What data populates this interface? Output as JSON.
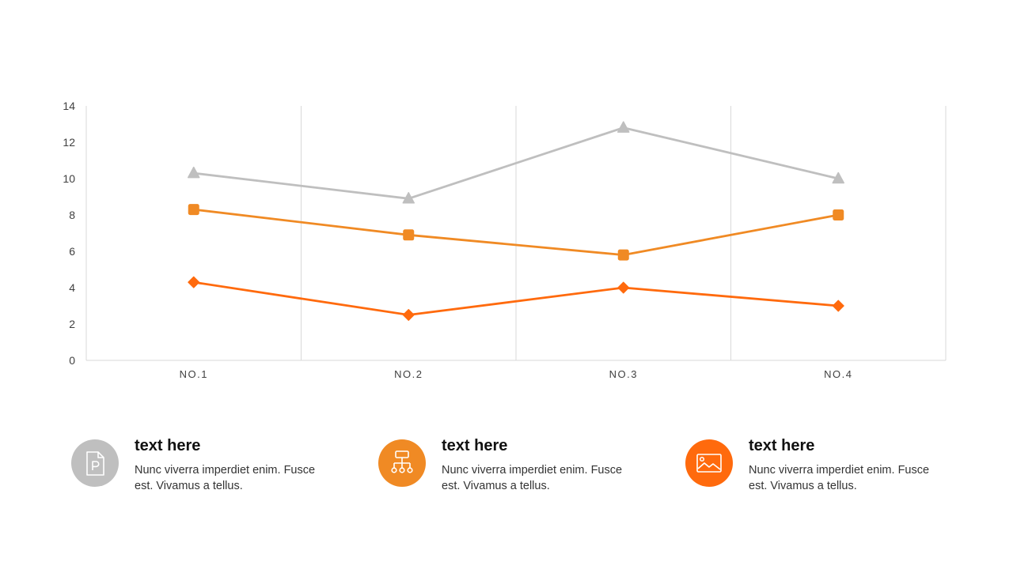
{
  "chart_data": {
    "type": "line",
    "categories": [
      "NO.1",
      "NO.2",
      "NO.3",
      "NO.4"
    ],
    "ylim": [
      0,
      14
    ],
    "yticks": [
      0,
      2,
      4,
      6,
      8,
      10,
      12,
      14
    ],
    "grid": "vertical",
    "legend": "none",
    "series": [
      {
        "values": [
          10.3,
          8.9,
          12.8,
          10.0
        ],
        "color": "#BFBFBF",
        "marker": "triangle"
      },
      {
        "values": [
          8.3,
          6.9,
          5.8,
          8.0
        ],
        "color": "#F08A24",
        "marker": "square"
      },
      {
        "values": [
          4.3,
          2.5,
          4.0,
          3.0
        ],
        "color": "#FF6A0D",
        "marker": "diamond"
      }
    ]
  },
  "cards": [
    {
      "title": "text here",
      "desc": "Nunc viverra imperdiet enim. Fusce est. Vivamus a tellus.",
      "icon": "document-p-icon",
      "color": "#BFBFBF"
    },
    {
      "title": "text here",
      "desc": "Nunc viverra imperdiet enim. Fusce est. Vivamus a tellus.",
      "icon": "org-chart-icon",
      "color": "#F08A24"
    },
    {
      "title": "text here",
      "desc": "Nunc viverra imperdiet enim. Fusce est. Vivamus a tellus.",
      "icon": "image-icon",
      "color": "#FF6A0D"
    }
  ]
}
